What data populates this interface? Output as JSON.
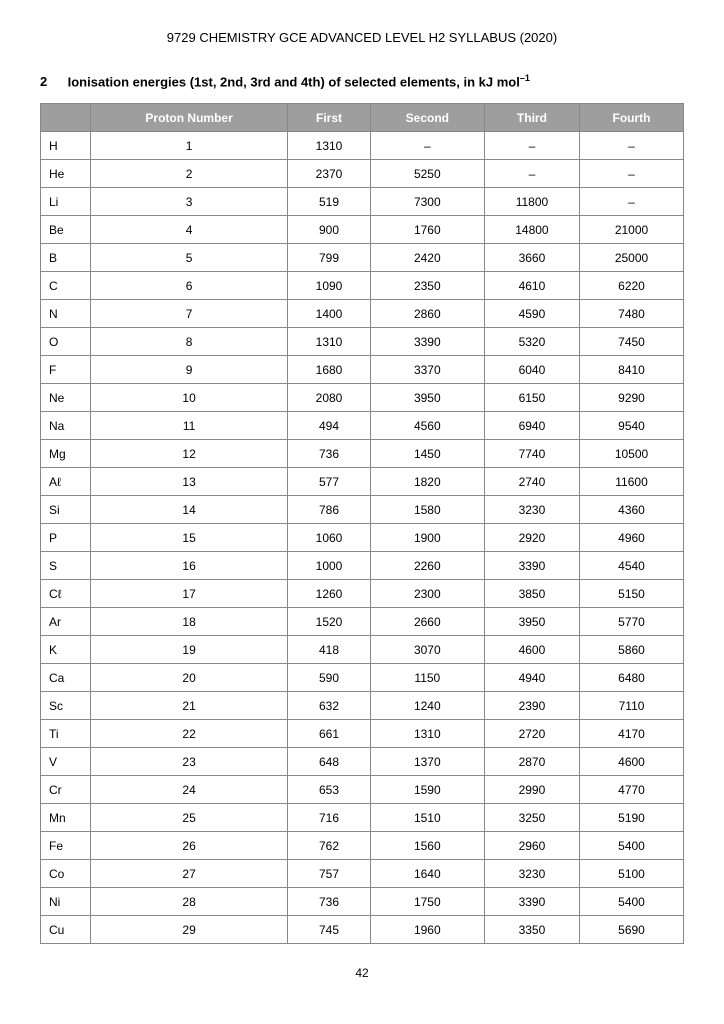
{
  "header": "9729 CHEMISTRY GCE ADVANCED LEVEL H2 SYLLABUS (2020)",
  "section": {
    "number": "2",
    "title_prefix": "Ionisation energies (1st, 2nd, 3rd and 4th) of selected elements, in kJ mol",
    "title_sup": "–1"
  },
  "table": {
    "columns": [
      "",
      "Proton Number",
      "First",
      "Second",
      "Third",
      "Fourth"
    ],
    "rows": [
      [
        "H",
        "1",
        "1310",
        "–",
        "–",
        "–"
      ],
      [
        "He",
        "2",
        "2370",
        "5250",
        "–",
        "–"
      ],
      [
        "Li",
        "3",
        "519",
        "7300",
        "11800",
        "–"
      ],
      [
        "Be",
        "4",
        "900",
        "1760",
        "14800",
        "21000"
      ],
      [
        "B",
        "5",
        "799",
        "2420",
        "3660",
        "25000"
      ],
      [
        "C",
        "6",
        "1090",
        "2350",
        "4610",
        "6220"
      ],
      [
        "N",
        "7",
        "1400",
        "2860",
        "4590",
        "7480"
      ],
      [
        "O",
        "8",
        "1310",
        "3390",
        "5320",
        "7450"
      ],
      [
        "F",
        "9",
        "1680",
        "3370",
        "6040",
        "8410"
      ],
      [
        "Ne",
        "10",
        "2080",
        "3950",
        "6150",
        "9290"
      ],
      [
        "Na",
        "11",
        "494",
        "4560",
        "6940",
        "9540"
      ],
      [
        "Mg",
        "12",
        "736",
        "1450",
        "7740",
        "10500"
      ],
      [
        "Aℓ",
        "13",
        "577",
        "1820",
        "2740",
        "11600"
      ],
      [
        "Si",
        "14",
        "786",
        "1580",
        "3230",
        "4360"
      ],
      [
        "P",
        "15",
        "1060",
        "1900",
        "2920",
        "4960"
      ],
      [
        "S",
        "16",
        "1000",
        "2260",
        "3390",
        "4540"
      ],
      [
        "Cℓ",
        "17",
        "1260",
        "2300",
        "3850",
        "5150"
      ],
      [
        "Ar",
        "18",
        "1520",
        "2660",
        "3950",
        "5770"
      ],
      [
        "K",
        "19",
        "418",
        "3070",
        "4600",
        "5860"
      ],
      [
        "Ca",
        "20",
        "590",
        "1150",
        "4940",
        "6480"
      ],
      [
        "Sc",
        "21",
        "632",
        "1240",
        "2390",
        "7110"
      ],
      [
        "Ti",
        "22",
        "661",
        "1310",
        "2720",
        "4170"
      ],
      [
        "V",
        "23",
        "648",
        "1370",
        "2870",
        "4600"
      ],
      [
        "Cr",
        "24",
        "653",
        "1590",
        "2990",
        "4770"
      ],
      [
        "Mn",
        "25",
        "716",
        "1510",
        "3250",
        "5190"
      ],
      [
        "Fe",
        "26",
        "762",
        "1560",
        "2960",
        "5400"
      ],
      [
        "Co",
        "27",
        "757",
        "1640",
        "3230",
        "5100"
      ],
      [
        "Ni",
        "28",
        "736",
        "1750",
        "3390",
        "5400"
      ],
      [
        "Cu",
        "29",
        "745",
        "1960",
        "3350",
        "5690"
      ]
    ]
  },
  "page_number": "42",
  "style": {
    "header_bg": "#9e9e9e",
    "header_fg": "#ffffff",
    "border_color": "#888888",
    "body_fontsize": 12,
    "title_fontsize": 13
  }
}
